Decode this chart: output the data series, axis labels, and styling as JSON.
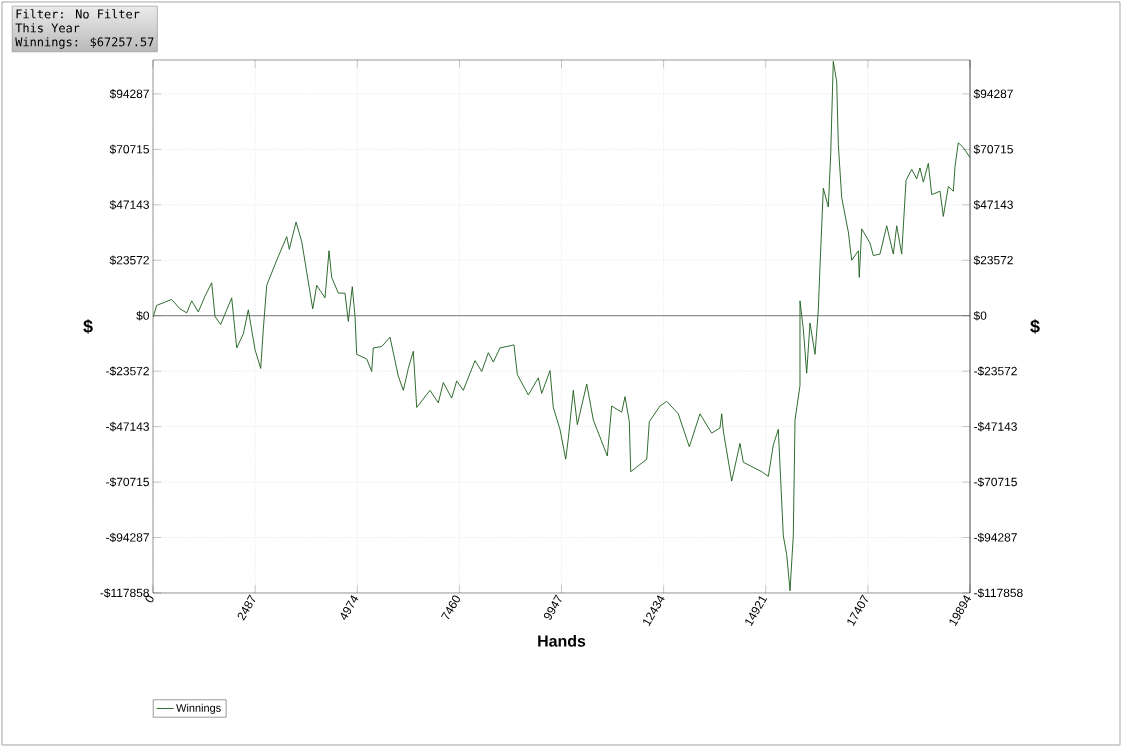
{
  "chart_data": {
    "type": "line",
    "annotations": [
      "Filter: No Filter",
      "This Year",
      "Winnings: $67257.57"
    ],
    "xlabel": "Hands",
    "ylabel": "$",
    "y2label": "$",
    "xlim": [
      0,
      19894
    ],
    "xticks": [
      0,
      2487,
      4974,
      7460,
      9947,
      12434,
      14921,
      17407,
      19894
    ],
    "ylim": [
      -117858,
      108700
    ],
    "yticks": [
      {
        "value": -117858,
        "label": "-$117858"
      },
      {
        "value": -94287,
        "label": "-$94287"
      },
      {
        "value": -70715,
        "label": "-$70715"
      },
      {
        "value": -47143,
        "label": "-$47143"
      },
      {
        "value": -23572,
        "label": "-$23572"
      },
      {
        "value": 0,
        "label": "$0"
      },
      {
        "value": 23572,
        "label": "$23572"
      },
      {
        "value": 47143,
        "label": "$47143"
      },
      {
        "value": 70715,
        "label": "$70715"
      },
      {
        "value": 94287,
        "label": "$94287"
      }
    ],
    "y2lim": [
      -117858,
      108700
    ],
    "y2ticks": [
      {
        "value": -117858,
        "label": "-$117858"
      },
      {
        "value": -94287,
        "label": "-$94287"
      },
      {
        "value": -70715,
        "label": "-$70715"
      },
      {
        "value": -47143,
        "label": "-$47143"
      },
      {
        "value": -23572,
        "label": "-$23572"
      },
      {
        "value": 0,
        "label": "$0"
      },
      {
        "value": 23572,
        "label": "$23572"
      },
      {
        "value": 47143,
        "label": "$47143"
      },
      {
        "value": 70715,
        "label": "$70715"
      },
      {
        "value": 94287,
        "label": "$94287"
      }
    ],
    "grid": true,
    "legend": "bottom left",
    "ref_lines": [
      {
        "axis": "y",
        "value": 0,
        "color": "#555555"
      }
    ],
    "x": [
      0,
      90,
      455,
      657,
      821,
      942,
      1103,
      1266,
      1429,
      1510,
      1648,
      1916,
      2038,
      2199,
      2321,
      2484,
      2622,
      2686,
      2769,
      3012,
      3256,
      3319,
      3482,
      3621,
      3726,
      3889,
      3987,
      4188,
      4286,
      4351,
      4512,
      4675,
      4756,
      4853,
      4919,
      4960,
      5204,
      5325,
      5364,
      5569,
      5771,
      5973,
      6095,
      6217,
      6338,
      6421,
      6745,
      6947,
      7069,
      7273,
      7395,
      7556,
      7841,
      8004,
      8165,
      8286,
      8449,
      8790,
      8871,
      9139,
      9382,
      9465,
      9667,
      9747,
      9910,
      10049,
      10112,
      10234,
      10332,
      10561,
      10721,
      11062,
      11169,
      11413,
      11493,
      11598,
      11632,
      12022,
      12085,
      12345,
      12509,
      12791,
      13059,
      13319,
      13604,
      13806,
      13848,
      13887,
      14091,
      14293,
      14374,
      14822,
      14983,
      15104,
      15226,
      15348,
      15431,
      15511,
      15591,
      15633,
      15754,
      15754,
      15835,
      15917,
      15998,
      16120,
      16200,
      16241,
      16322,
      16444,
      16502,
      16565,
      16648,
      16687,
      16770,
      16931,
      17013,
      17174,
      17198,
      17257,
      17459,
      17539,
      17702,
      17866,
      18026,
      18109,
      18231,
      18336,
      18474,
      18596,
      18676,
      18757,
      18879,
      18961,
      19164,
      19244,
      19366,
      19488,
      19529,
      19609,
      19731,
      19894
    ],
    "series": [
      {
        "name": "Winnings",
        "color": "#1a5c1a",
        "values": [
          -700,
          4400,
          6900,
          2900,
          1200,
          6300,
          1600,
          8300,
          14000,
          -400,
          -3700,
          7600,
          -13700,
          -7700,
          2500,
          -14400,
          -22400,
          -5700,
          12900,
          23600,
          33600,
          28200,
          39800,
          31600,
          20300,
          2900,
          12900,
          7600,
          27600,
          16300,
          9600,
          9600,
          -2400,
          12300,
          -400,
          -16400,
          -18400,
          -23700,
          -13700,
          -13100,
          -9100,
          -25700,
          -31700,
          -22400,
          -15100,
          -39000,
          -31700,
          -37000,
          -28400,
          -35000,
          -27700,
          -31700,
          -19100,
          -23700,
          -15700,
          -19700,
          -13700,
          -12400,
          -25000,
          -33700,
          -26400,
          -33000,
          -23300,
          -39000,
          -48300,
          -61000,
          -52300,
          -31700,
          -46300,
          -29000,
          -44300,
          -59600,
          -38400,
          -41000,
          -34400,
          -45000,
          -66300,
          -61000,
          -45000,
          -38400,
          -36400,
          -41700,
          -55700,
          -41700,
          -49900,
          -47700,
          -41700,
          -49000,
          -70300,
          -54300,
          -62300,
          -66300,
          -68300,
          -55000,
          -48300,
          -93600,
          -101600,
          -116900,
          -93600,
          -44300,
          -29700,
          6300,
          -5700,
          -24400,
          -3100,
          -16400,
          2300,
          20900,
          54200,
          46200,
          68800,
          108100,
          99500,
          72800,
          50200,
          35600,
          23600,
          27600,
          16300,
          36900,
          30900,
          25600,
          26200,
          38200,
          26200,
          38200,
          26200,
          57500,
          62200,
          58200,
          62800,
          56800,
          64800,
          51500,
          52900,
          42200,
          54900,
          52900,
          63500,
          73500,
          71500,
          67258
        ]
      }
    ]
  }
}
